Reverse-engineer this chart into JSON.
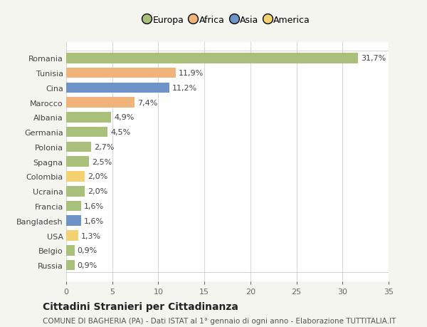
{
  "countries": [
    "Romania",
    "Tunisia",
    "Cina",
    "Marocco",
    "Albania",
    "Germania",
    "Polonia",
    "Spagna",
    "Colombia",
    "Ucraina",
    "Francia",
    "Bangladesh",
    "USA",
    "Belgio",
    "Russia"
  ],
  "values": [
    31.7,
    11.9,
    11.2,
    7.4,
    4.9,
    4.5,
    2.7,
    2.5,
    2.0,
    2.0,
    1.6,
    1.6,
    1.3,
    0.9,
    0.9
  ],
  "labels": [
    "31,7%",
    "11,9%",
    "11,2%",
    "7,4%",
    "4,9%",
    "4,5%",
    "2,7%",
    "2,5%",
    "2,0%",
    "2,0%",
    "1,6%",
    "1,6%",
    "1,3%",
    "0,9%",
    "0,9%"
  ],
  "continents": [
    "Europa",
    "Africa",
    "Asia",
    "Africa",
    "Europa",
    "Europa",
    "Europa",
    "Europa",
    "America",
    "Europa",
    "Europa",
    "Asia",
    "America",
    "Europa",
    "Europa"
  ],
  "continent_colors": {
    "Europa": "#a8c07a",
    "Africa": "#f0b47a",
    "Asia": "#6e93c8",
    "America": "#f5d070"
  },
  "legend_order": [
    "Europa",
    "Africa",
    "Asia",
    "America"
  ],
  "legend_colors": [
    "#a8c07a",
    "#f0b47a",
    "#6e93c8",
    "#f5d070"
  ],
  "xlim": [
    0,
    35
  ],
  "xticks": [
    0,
    5,
    10,
    15,
    20,
    25,
    30,
    35
  ],
  "title": "Cittadini Stranieri per Cittadinanza",
  "subtitle": "COMUNE DI BAGHERIA (PA) - Dati ISTAT al 1° gennaio di ogni anno - Elaborazione TUTTITALIA.IT",
  "background_color": "#f5f5f0",
  "plot_bg_color": "#ffffff",
  "grid_color": "#e8e8e8",
  "bar_height": 0.7,
  "label_fontsize": 8,
  "tick_fontsize": 8,
  "title_fontsize": 10,
  "subtitle_fontsize": 7.5
}
